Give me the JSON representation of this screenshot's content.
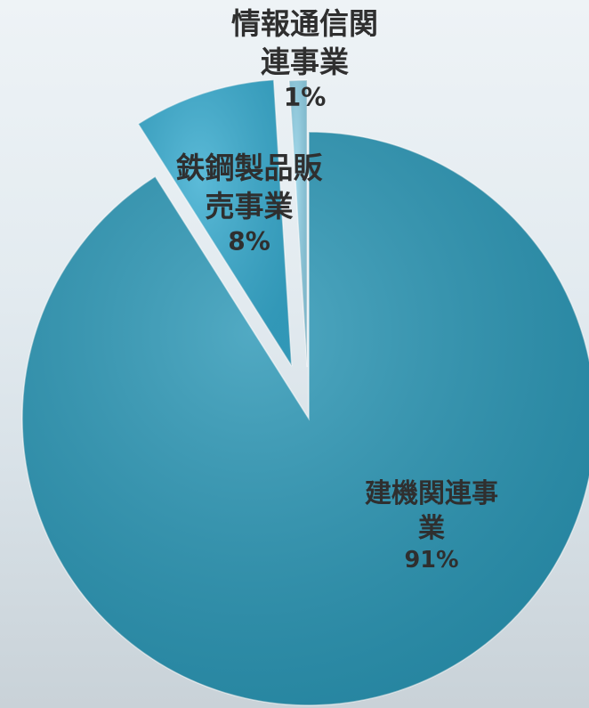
{
  "chart_data": {
    "type": "pie",
    "categories": [
      "建機関連事業",
      "鉄鋼製品販売事業",
      "情報通信関連事業"
    ],
    "values": [
      91,
      8,
      1
    ],
    "value_labels": [
      "91%",
      "8%",
      "1%"
    ],
    "colors": [
      "#2b97b6",
      "#38acd0",
      "#8fd0e6"
    ]
  }
}
